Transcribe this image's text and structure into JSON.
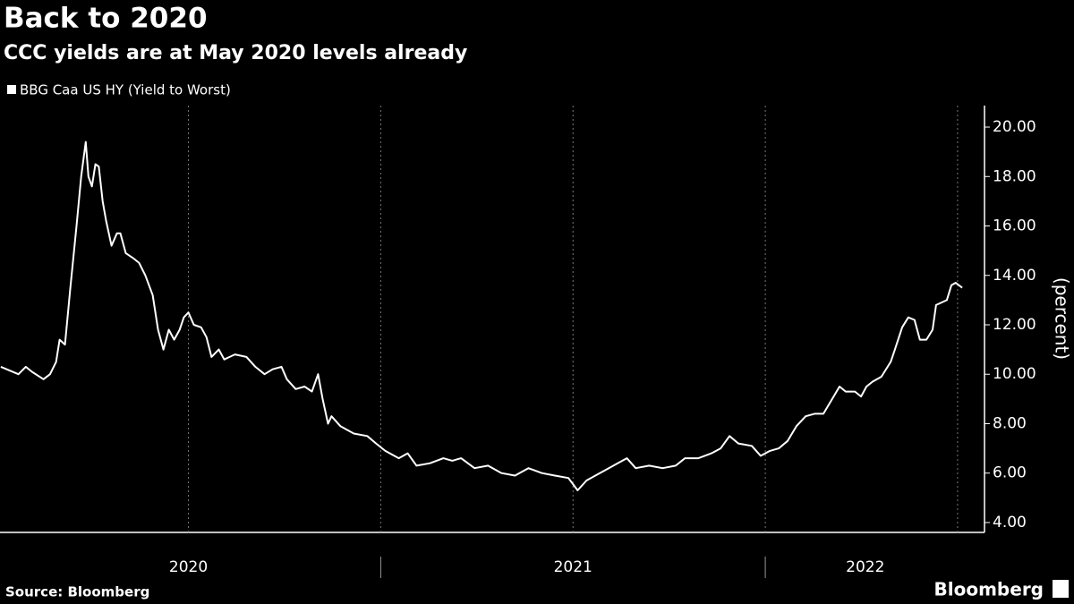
{
  "chart_data": {
    "type": "line",
    "title": "Back to 2020",
    "subtitle": "CCC yields are at May 2020 levels already",
    "y_label": "(percent)",
    "source": "Source: Bloomberg",
    "brand": "Bloomberg",
    "series": [
      {
        "name": "BBG Caa US HY (Yield to Worst)",
        "color": "#ffffff",
        "x": [
          2020.012,
          2020.058,
          2020.077,
          2020.093,
          2020.123,
          2020.14,
          2020.156,
          2020.165,
          2020.179,
          2020.193,
          2020.209,
          2020.221,
          2020.233,
          2020.24,
          2020.249,
          2020.258,
          2020.267,
          2020.277,
          2020.286,
          2020.3,
          2020.314,
          2020.323,
          2020.337,
          2020.356,
          2020.372,
          2020.388,
          2020.407,
          2020.421,
          2020.435,
          2020.449,
          2020.463,
          2020.477,
          2020.488,
          2020.5,
          2020.514,
          2020.533,
          2020.547,
          2020.56,
          2020.579,
          2020.593,
          2020.621,
          2020.651,
          2020.674,
          2020.698,
          2020.719,
          2020.742,
          2020.756,
          2020.779,
          2020.802,
          2020.821,
          2020.837,
          2020.849,
          2020.863,
          2020.872,
          2020.895,
          2020.93,
          2020.965,
          2020.988,
          2021.012,
          2021.047,
          2021.07,
          2021.093,
          2021.128,
          2021.163,
          2021.186,
          2021.209,
          2021.244,
          2021.279,
          2021.314,
          2021.349,
          2021.384,
          2021.419,
          2021.453,
          2021.488,
          2021.512,
          2021.535,
          2021.558,
          2021.593,
          2021.616,
          2021.64,
          2021.663,
          2021.698,
          2021.733,
          2021.767,
          2021.791,
          2021.826,
          2021.86,
          2021.884,
          2021.907,
          2021.93,
          2021.965,
          2021.988,
          2022.012,
          2022.035,
          2022.058,
          2022.081,
          2022.105,
          2022.128,
          2022.151,
          2022.174,
          2022.193,
          2022.209,
          2022.233,
          2022.249,
          2022.263,
          2022.279,
          2022.302,
          2022.326,
          2022.337,
          2022.356,
          2022.372,
          2022.388,
          2022.402,
          2022.419,
          2022.435,
          2022.444,
          2022.458,
          2022.472,
          2022.484,
          2022.495,
          2022.512
        ],
        "values": [
          10.3,
          10.0,
          10.3,
          10.1,
          9.8,
          10.0,
          10.5,
          11.4,
          11.2,
          13.5,
          16.0,
          18.0,
          19.4,
          18.0,
          17.6,
          18.5,
          18.4,
          17.0,
          16.2,
          15.2,
          15.7,
          15.7,
          14.9,
          14.7,
          14.5,
          14.0,
          13.2,
          11.8,
          11.0,
          11.8,
          11.4,
          11.8,
          12.3,
          12.5,
          12.0,
          11.9,
          11.5,
          10.7,
          11.0,
          10.6,
          10.8,
          10.7,
          10.3,
          10.0,
          10.2,
          10.3,
          9.8,
          9.4,
          9.5,
          9.3,
          10.0,
          9.0,
          8.0,
          8.3,
          7.9,
          7.6,
          7.5,
          7.2,
          6.9,
          6.6,
          6.8,
          6.3,
          6.4,
          6.6,
          6.5,
          6.6,
          6.2,
          6.3,
          6.0,
          5.9,
          6.2,
          6.0,
          5.9,
          5.8,
          5.3,
          5.7,
          5.9,
          6.2,
          6.4,
          6.6,
          6.2,
          6.3,
          6.2,
          6.3,
          6.6,
          6.6,
          6.8,
          7.0,
          7.5,
          7.2,
          7.1,
          6.7,
          6.9,
          7.0,
          7.3,
          7.9,
          8.3,
          8.4,
          8.4,
          9.0,
          9.5,
          9.3,
          9.3,
          9.1,
          9.5,
          9.7,
          9.9,
          10.5,
          11.0,
          11.9,
          12.3,
          12.2,
          11.4,
          11.4,
          11.8,
          12.8,
          12.9,
          13.0,
          13.6,
          13.7,
          13.5
        ]
      }
    ],
    "xlim": [
      2020.01,
      2022.57
    ],
    "xticks": [
      2020.5,
      2021,
      2021.5,
      2022,
      2022.5
    ],
    "year_labels": [
      {
        "value": 2020.5,
        "label": "2020"
      },
      {
        "value": 2021.5,
        "label": "2021"
      },
      {
        "value": 2022.26,
        "label": "2022"
      }
    ],
    "ylim": [
      3.6,
      20.87
    ],
    "yticks": [
      {
        "value": 4,
        "label": "4.00"
      },
      {
        "value": 6,
        "label": "6.00"
      },
      {
        "value": 8,
        "label": "8.00"
      },
      {
        "value": 10,
        "label": "10.00"
      },
      {
        "value": 12,
        "label": "12.00"
      },
      {
        "value": 14,
        "label": "14.00"
      },
      {
        "value": 16,
        "label": "16.00"
      },
      {
        "value": 18,
        "label": "18.00"
      },
      {
        "value": 20,
        "label": "20.00"
      }
    ],
    "grid": true
  }
}
